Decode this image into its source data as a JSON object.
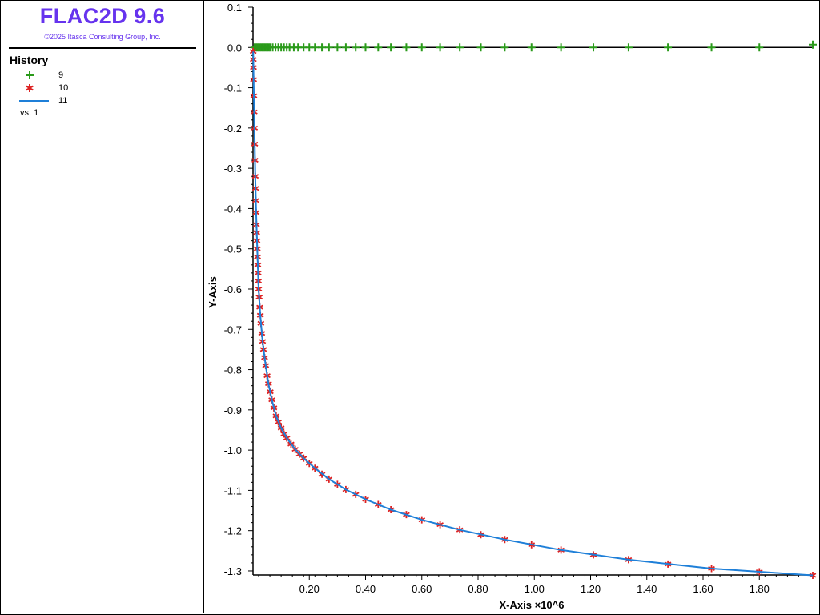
{
  "app": {
    "title": "FLAC2D 9.6",
    "copyright": "©2025 Itasca Consulting Group, Inc."
  },
  "legend": {
    "heading": "History",
    "items": [
      {
        "label": "9",
        "marker": "plus",
        "color": "#2a9a1a"
      },
      {
        "label": "10",
        "marker": "asterisk",
        "color": "#dd2222"
      },
      {
        "label": "11",
        "marker": "line",
        "color": "#1e7fd8"
      }
    ],
    "vs_label": "vs. 1"
  },
  "chart_data": {
    "type": "line",
    "title": "",
    "xlabel": "X-Axis ×10^6",
    "ylabel": "Y-Axis",
    "xlim": [
      0,
      1.99
    ],
    "ylim": [
      -1.31,
      0.1
    ],
    "x_ticks": [
      "0.20",
      "0.40",
      "0.60",
      "0.80",
      "1.00",
      "1.20",
      "1.40",
      "1.60",
      "1.80"
    ],
    "y_ticks": [
      "0.1",
      "0.0",
      "-0.1",
      "-0.2",
      "-0.3",
      "-0.4",
      "-0.5",
      "-0.6",
      "-0.7",
      "-0.8",
      "-0.9",
      "-1.0",
      "-1.1",
      "-1.2",
      "-1.3"
    ],
    "grid": false,
    "series": [
      {
        "name": "9",
        "marker": "plus",
        "color": "#2a9a1a",
        "line": "none",
        "x": [
          0.005,
          0.01,
          0.015,
          0.02,
          0.025,
          0.03,
          0.035,
          0.04,
          0.045,
          0.05,
          0.055,
          0.06,
          0.07,
          0.08,
          0.09,
          0.1,
          0.11,
          0.12,
          0.13,
          0.145,
          0.16,
          0.18,
          0.2,
          0.22,
          0.245,
          0.27,
          0.3,
          0.33,
          0.365,
          0.4,
          0.445,
          0.49,
          0.545,
          0.6,
          0.665,
          0.735,
          0.81,
          0.895,
          0.99,
          1.095,
          1.21,
          1.335,
          1.475,
          1.63,
          1.8,
          1.99
        ],
        "y": [
          0.0,
          0.0,
          0.0,
          0.0,
          0.0,
          0.0,
          0.0,
          0.0,
          0.0,
          0.0,
          0.0,
          0.0,
          0.0,
          0.0,
          0.0,
          0.0,
          0.0,
          0.0,
          0.0,
          0.0,
          0.0,
          0.0,
          0.0,
          0.0,
          0.0,
          0.0,
          0.0,
          0.0,
          0.0,
          0.0,
          0.0,
          0.0,
          0.0,
          0.0,
          0.0,
          0.0,
          0.0,
          0.0,
          0.0,
          0.0,
          0.0,
          0.0,
          0.0,
          0.0,
          0.0,
          0.007
        ]
      },
      {
        "name": "10",
        "marker": "asterisk",
        "color": "#dd2222",
        "line": "none",
        "x": [
          0.0005,
          0.001,
          0.0015,
          0.002,
          0.003,
          0.004,
          0.005,
          0.006,
          0.007,
          0.008,
          0.009,
          0.01,
          0.011,
          0.012,
          0.013,
          0.014,
          0.015,
          0.016,
          0.017,
          0.018,
          0.019,
          0.02,
          0.022,
          0.024,
          0.026,
          0.028,
          0.031,
          0.034,
          0.037,
          0.041,
          0.045,
          0.05,
          0.055,
          0.061,
          0.067,
          0.074,
          0.082,
          0.09,
          0.1,
          0.11,
          0.12,
          0.135,
          0.15,
          0.165,
          0.18,
          0.2,
          0.22,
          0.245,
          0.27,
          0.3,
          0.33,
          0.365,
          0.4,
          0.445,
          0.49,
          0.545,
          0.6,
          0.665,
          0.735,
          0.81,
          0.895,
          0.99,
          1.095,
          1.21,
          1.335,
          1.475,
          1.63,
          1.8,
          1.99
        ],
        "y": [
          -0.01,
          -0.03,
          -0.05,
          -0.08,
          -0.12,
          -0.16,
          -0.2,
          -0.24,
          -0.28,
          -0.32,
          -0.35,
          -0.38,
          -0.41,
          -0.44,
          -0.46,
          -0.48,
          -0.5,
          -0.52,
          -0.54,
          -0.56,
          -0.58,
          -0.6,
          -0.62,
          -0.645,
          -0.665,
          -0.685,
          -0.71,
          -0.73,
          -0.75,
          -0.77,
          -0.79,
          -0.815,
          -0.835,
          -0.855,
          -0.875,
          -0.895,
          -0.915,
          -0.93,
          -0.945,
          -0.96,
          -0.97,
          -0.985,
          -0.998,
          -1.01,
          -1.02,
          -1.033,
          -1.045,
          -1.06,
          -1.072,
          -1.085,
          -1.098,
          -1.11,
          -1.122,
          -1.135,
          -1.148,
          -1.16,
          -1.173,
          -1.185,
          -1.198,
          -1.21,
          -1.222,
          -1.235,
          -1.248,
          -1.26,
          -1.272,
          -1.283,
          -1.294,
          -1.302,
          -1.311
        ]
      },
      {
        "name": "11",
        "marker": "none",
        "color": "#1e7fd8",
        "line": "solid",
        "x": [
          0.0005,
          0.002,
          0.005,
          0.008,
          0.011,
          0.015,
          0.02,
          0.026,
          0.034,
          0.045,
          0.055,
          0.067,
          0.082,
          0.1,
          0.12,
          0.15,
          0.18,
          0.22,
          0.27,
          0.33,
          0.4,
          0.49,
          0.6,
          0.735,
          0.895,
          1.095,
          1.335,
          1.63,
          1.99
        ],
        "y": [
          -0.01,
          -0.08,
          -0.2,
          -0.32,
          -0.41,
          -0.5,
          -0.6,
          -0.665,
          -0.73,
          -0.79,
          -0.835,
          -0.875,
          -0.915,
          -0.945,
          -0.97,
          -0.998,
          -1.02,
          -1.045,
          -1.072,
          -1.098,
          -1.122,
          -1.148,
          -1.173,
          -1.198,
          -1.222,
          -1.248,
          -1.272,
          -1.294,
          -1.311
        ]
      }
    ],
    "zero_line": true
  }
}
